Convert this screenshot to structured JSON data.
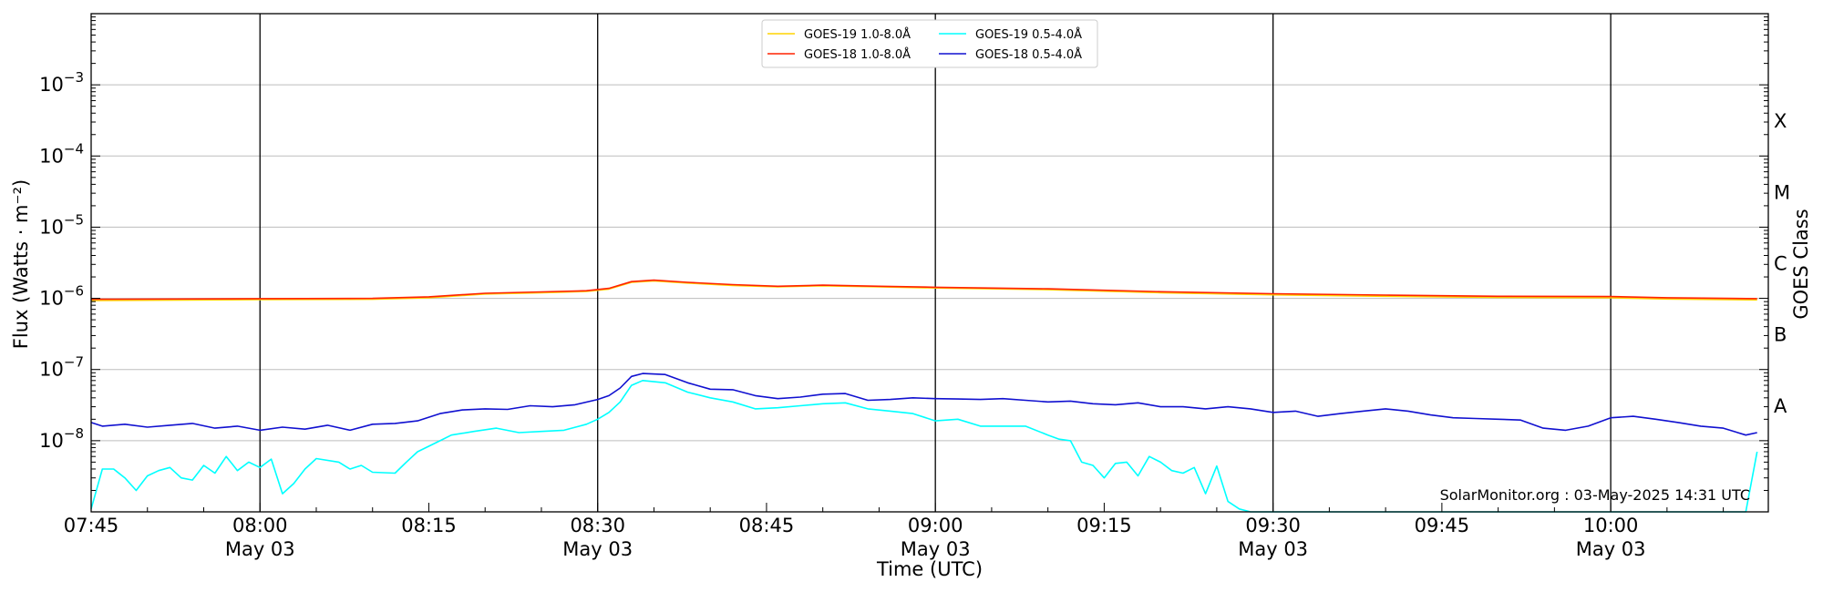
{
  "chart_data": {
    "type": "line",
    "title": "",
    "xlabel": "Time (UTC)",
    "ylabel": "Flux (Watts · m⁻²)",
    "ylabel_right": "GOES Class",
    "yscale": "log",
    "ylim": [
      1e-09,
      0.01
    ],
    "xlim": [
      "07:45",
      "10:14"
    ],
    "grid": "horizontal at each decade",
    "legend_position": "top-center",
    "credit": "SolarMonitor.org : 03-May-2025 14:31 UTC",
    "y_ticks": [
      {
        "value": 1e-08,
        "base": "10",
        "exp": "−8"
      },
      {
        "value": 1e-07,
        "base": "10",
        "exp": "−7"
      },
      {
        "value": 1e-06,
        "base": "10",
        "exp": "−6"
      },
      {
        "value": 1e-05,
        "base": "10",
        "exp": "−5"
      },
      {
        "value": 0.0001,
        "base": "10",
        "exp": "−4"
      },
      {
        "value": 0.001,
        "base": "10",
        "exp": "−3"
      }
    ],
    "x_ticks": [
      {
        "time": "07:45",
        "label": "07:45",
        "sublabel": ""
      },
      {
        "time": "08:00",
        "label": "08:00",
        "sublabel": "May 03"
      },
      {
        "time": "08:15",
        "label": "08:15",
        "sublabel": ""
      },
      {
        "time": "08:30",
        "label": "08:30",
        "sublabel": "May 03"
      },
      {
        "time": "08:45",
        "label": "08:45",
        "sublabel": ""
      },
      {
        "time": "09:00",
        "label": "09:00",
        "sublabel": "May 03"
      },
      {
        "time": "09:15",
        "label": "09:15",
        "sublabel": ""
      },
      {
        "time": "09:30",
        "label": "09:30",
        "sublabel": "May 03"
      },
      {
        "time": "09:45",
        "label": "09:45",
        "sublabel": ""
      },
      {
        "time": "10:00",
        "label": "10:00",
        "sublabel": "May 03"
      }
    ],
    "vertical_lines": [
      "08:00",
      "08:30",
      "09:00",
      "09:30",
      "10:00"
    ],
    "goes_classes": [
      {
        "label": "A",
        "value": 3.16e-08
      },
      {
        "label": "B",
        "value": 3.16e-07
      },
      {
        "label": "C",
        "value": 3.16e-06
      },
      {
        "label": "M",
        "value": 3.16e-05
      },
      {
        "label": "X",
        "value": 0.000316
      }
    ],
    "series": [
      {
        "name": "GOES-19 1.0-8.0Å",
        "color": "#ffd400",
        "points": [
          [
            "07:45",
            9.3e-07
          ],
          [
            "08:00",
            9.6e-07
          ],
          [
            "08:10",
            9.7e-07
          ],
          [
            "08:15",
            1.02e-06
          ],
          [
            "08:20",
            1.15e-06
          ],
          [
            "08:25",
            1.2e-06
          ],
          [
            "08:29",
            1.25e-06
          ],
          [
            "08:31",
            1.35e-06
          ],
          [
            "08:33",
            1.68e-06
          ],
          [
            "08:35",
            1.76e-06
          ],
          [
            "08:38",
            1.64e-06
          ],
          [
            "08:42",
            1.52e-06
          ],
          [
            "08:46",
            1.45e-06
          ],
          [
            "08:50",
            1.5e-06
          ],
          [
            "08:55",
            1.45e-06
          ],
          [
            "09:00",
            1.4e-06
          ],
          [
            "09:10",
            1.32e-06
          ],
          [
            "09:20",
            1.2e-06
          ],
          [
            "09:30",
            1.12e-06
          ],
          [
            "09:40",
            1.07e-06
          ],
          [
            "09:50",
            1.03e-06
          ],
          [
            "10:00",
            1.02e-06
          ],
          [
            "10:05",
            9.8e-07
          ],
          [
            "10:13",
            9.5e-07
          ]
        ]
      },
      {
        "name": "GOES-18 1.0-8.0Å",
        "color": "#ff2200",
        "points": [
          [
            "07:45",
            9.7e-07
          ],
          [
            "08:00",
            9.9e-07
          ],
          [
            "08:10",
            1e-06
          ],
          [
            "08:15",
            1.05e-06
          ],
          [
            "08:20",
            1.18e-06
          ],
          [
            "08:25",
            1.23e-06
          ],
          [
            "08:29",
            1.28e-06
          ],
          [
            "08:31",
            1.38e-06
          ],
          [
            "08:33",
            1.72e-06
          ],
          [
            "08:35",
            1.8e-06
          ],
          [
            "08:38",
            1.68e-06
          ],
          [
            "08:42",
            1.56e-06
          ],
          [
            "08:46",
            1.48e-06
          ],
          [
            "08:50",
            1.53e-06
          ],
          [
            "08:55",
            1.48e-06
          ],
          [
            "09:00",
            1.43e-06
          ],
          [
            "09:10",
            1.36e-06
          ],
          [
            "09:20",
            1.24e-06
          ],
          [
            "09:30",
            1.16e-06
          ],
          [
            "09:40",
            1.11e-06
          ],
          [
            "09:50",
            1.07e-06
          ],
          [
            "10:00",
            1.06e-06
          ],
          [
            "10:05",
            1.02e-06
          ],
          [
            "10:13",
            9.9e-07
          ]
        ]
      },
      {
        "name": "GOES-19 0.5-4.0Å",
        "color": "#00ffff",
        "points": [
          [
            "07:45",
            1.1e-09
          ],
          [
            "07:46",
            4e-09
          ],
          [
            "07:47",
            4e-09
          ],
          [
            "07:48",
            3e-09
          ],
          [
            "07:49",
            2e-09
          ],
          [
            "07:50",
            3.2e-09
          ],
          [
            "07:51",
            3.8e-09
          ],
          [
            "07:52",
            4.2e-09
          ],
          [
            "07:53",
            3e-09
          ],
          [
            "07:54",
            2.8e-09
          ],
          [
            "07:55",
            4.5e-09
          ],
          [
            "07:56",
            3.5e-09
          ],
          [
            "07:57",
            6e-09
          ],
          [
            "07:58",
            3.8e-09
          ],
          [
            "07:59",
            5e-09
          ],
          [
            "08:00",
            4.2e-09
          ],
          [
            "08:01",
            5.5e-09
          ],
          [
            "08:02",
            1.8e-09
          ],
          [
            "08:03",
            2.5e-09
          ],
          [
            "08:04",
            4e-09
          ],
          [
            "08:05",
            5.6e-09
          ],
          [
            "08:07",
            5e-09
          ],
          [
            "08:08",
            4e-09
          ],
          [
            "08:09",
            4.5e-09
          ],
          [
            "08:10",
            3.6e-09
          ],
          [
            "08:12",
            3.5e-09
          ],
          [
            "08:13",
            5e-09
          ],
          [
            "08:14",
            7e-09
          ],
          [
            "08:16",
            1e-08
          ],
          [
            "08:17",
            1.2e-08
          ],
          [
            "08:19",
            1.35e-08
          ],
          [
            "08:21",
            1.5e-08
          ],
          [
            "08:23",
            1.3e-08
          ],
          [
            "08:25",
            1.35e-08
          ],
          [
            "08:27",
            1.4e-08
          ],
          [
            "08:29",
            1.7e-08
          ],
          [
            "08:30",
            2e-08
          ],
          [
            "08:31",
            2.5e-08
          ],
          [
            "08:32",
            3.5e-08
          ],
          [
            "08:33",
            6e-08
          ],
          [
            "08:34",
            7e-08
          ],
          [
            "08:36",
            6.5e-08
          ],
          [
            "08:38",
            4.8e-08
          ],
          [
            "08:40",
            4e-08
          ],
          [
            "08:42",
            3.5e-08
          ],
          [
            "08:44",
            2.8e-08
          ],
          [
            "08:46",
            2.9e-08
          ],
          [
            "08:48",
            3.1e-08
          ],
          [
            "08:50",
            3.3e-08
          ],
          [
            "08:52",
            3.4e-08
          ],
          [
            "08:54",
            2.8e-08
          ],
          [
            "08:56",
            2.6e-08
          ],
          [
            "08:58",
            2.4e-08
          ],
          [
            "09:00",
            1.9e-08
          ],
          [
            "09:02",
            2e-08
          ],
          [
            "09:04",
            1.6e-08
          ],
          [
            "09:06",
            1.6e-08
          ],
          [
            "09:08",
            1.6e-08
          ],
          [
            "09:10",
            1.2e-08
          ],
          [
            "09:11",
            1.05e-08
          ],
          [
            "09:12",
            1e-08
          ],
          [
            "09:13",
            5e-09
          ],
          [
            "09:14",
            4.5e-09
          ],
          [
            "09:15",
            3e-09
          ],
          [
            "09:16",
            4.8e-09
          ],
          [
            "09:17",
            5e-09
          ],
          [
            "09:18",
            3.2e-09
          ],
          [
            "09:19",
            6e-09
          ],
          [
            "09:20",
            5e-09
          ],
          [
            "09:21",
            3.8e-09
          ],
          [
            "09:22",
            3.5e-09
          ],
          [
            "09:23",
            4.2e-09
          ],
          [
            "09:24",
            1.8e-09
          ],
          [
            "09:25",
            4.4e-09
          ],
          [
            "09:26",
            1.4e-09
          ],
          [
            "09:27",
            1.1e-09
          ],
          [
            "09:28",
            1e-09
          ],
          [
            "10:12",
            1e-09
          ],
          [
            "10:13",
            7e-09
          ]
        ]
      },
      {
        "name": "GOES-18 0.5-4.0Å",
        "color": "#1010d0",
        "points": [
          [
            "07:45",
            1.8e-08
          ],
          [
            "07:46",
            1.6e-08
          ],
          [
            "07:48",
            1.7e-08
          ],
          [
            "07:50",
            1.55e-08
          ],
          [
            "07:52",
            1.65e-08
          ],
          [
            "07:54",
            1.75e-08
          ],
          [
            "07:56",
            1.5e-08
          ],
          [
            "07:58",
            1.6e-08
          ],
          [
            "08:00",
            1.4e-08
          ],
          [
            "08:02",
            1.55e-08
          ],
          [
            "08:04",
            1.45e-08
          ],
          [
            "08:06",
            1.65e-08
          ],
          [
            "08:08",
            1.4e-08
          ],
          [
            "08:10",
            1.7e-08
          ],
          [
            "08:12",
            1.75e-08
          ],
          [
            "08:14",
            1.9e-08
          ],
          [
            "08:16",
            2.4e-08
          ],
          [
            "08:18",
            2.7e-08
          ],
          [
            "08:20",
            2.8e-08
          ],
          [
            "08:22",
            2.75e-08
          ],
          [
            "08:24",
            3.1e-08
          ],
          [
            "08:26",
            3e-08
          ],
          [
            "08:28",
            3.2e-08
          ],
          [
            "08:30",
            3.8e-08
          ],
          [
            "08:31",
            4.3e-08
          ],
          [
            "08:32",
            5.5e-08
          ],
          [
            "08:33",
            8e-08
          ],
          [
            "08:34",
            8.8e-08
          ],
          [
            "08:36",
            8.5e-08
          ],
          [
            "08:38",
            6.5e-08
          ],
          [
            "08:40",
            5.3e-08
          ],
          [
            "08:42",
            5.2e-08
          ],
          [
            "08:44",
            4.3e-08
          ],
          [
            "08:46",
            3.9e-08
          ],
          [
            "08:48",
            4.1e-08
          ],
          [
            "08:50",
            4.5e-08
          ],
          [
            "08:52",
            4.6e-08
          ],
          [
            "08:54",
            3.7e-08
          ],
          [
            "08:56",
            3.8e-08
          ],
          [
            "08:58",
            4e-08
          ],
          [
            "09:00",
            3.9e-08
          ],
          [
            "09:02",
            3.85e-08
          ],
          [
            "09:04",
            3.8e-08
          ],
          [
            "09:06",
            3.9e-08
          ],
          [
            "09:08",
            3.7e-08
          ],
          [
            "09:10",
            3.5e-08
          ],
          [
            "09:12",
            3.6e-08
          ],
          [
            "09:14",
            3.3e-08
          ],
          [
            "09:16",
            3.2e-08
          ],
          [
            "09:18",
            3.4e-08
          ],
          [
            "09:20",
            3e-08
          ],
          [
            "09:22",
            3e-08
          ],
          [
            "09:24",
            2.8e-08
          ],
          [
            "09:26",
            3e-08
          ],
          [
            "09:28",
            2.8e-08
          ],
          [
            "09:30",
            2.5e-08
          ],
          [
            "09:32",
            2.6e-08
          ],
          [
            "09:34",
            2.2e-08
          ],
          [
            "09:36",
            2.4e-08
          ],
          [
            "09:38",
            2.6e-08
          ],
          [
            "09:40",
            2.8e-08
          ],
          [
            "09:42",
            2.6e-08
          ],
          [
            "09:44",
            2.3e-08
          ],
          [
            "09:46",
            2.1e-08
          ],
          [
            "09:48",
            2.05e-08
          ],
          [
            "09:50",
            2e-08
          ],
          [
            "09:52",
            1.95e-08
          ],
          [
            "09:54",
            1.5e-08
          ],
          [
            "09:56",
            1.4e-08
          ],
          [
            "09:58",
            1.6e-08
          ],
          [
            "10:00",
            2.1e-08
          ],
          [
            "10:02",
            2.2e-08
          ],
          [
            "10:04",
            2e-08
          ],
          [
            "10:06",
            1.8e-08
          ],
          [
            "10:08",
            1.6e-08
          ],
          [
            "10:10",
            1.5e-08
          ],
          [
            "10:12",
            1.2e-08
          ],
          [
            "10:13",
            1.3e-08
          ]
        ]
      }
    ]
  }
}
